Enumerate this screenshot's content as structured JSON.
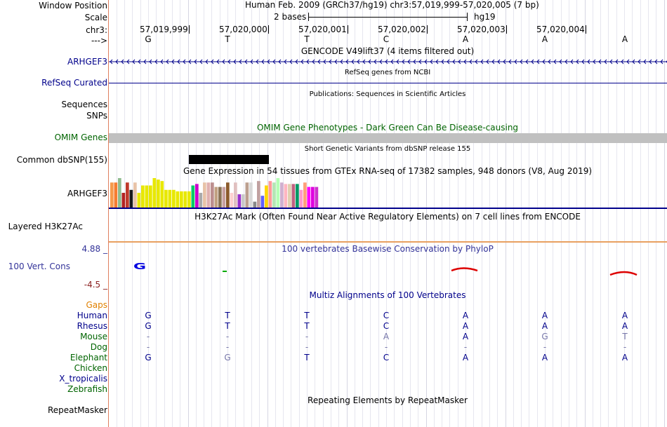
{
  "header": {
    "title": "Human Feb. 2009 (GRCh37/hg19)   chr3:57,019,999-57,020,005 (7 bp)",
    "scale_text": "2 bases",
    "assembly": "hg19",
    "positions": [
      "57,019,999",
      "57,020,000",
      "57,020,001",
      "57,020,002",
      "57,020,003",
      "57,020,004"
    ],
    "strand_bases": [
      "G",
      "T",
      "T",
      "C",
      "A",
      "A",
      "A"
    ]
  },
  "labels": {
    "window_position": "Window Position",
    "scale": "Scale",
    "chr": "chr3:",
    "strand": "--->",
    "arhgef3": "ARHGEF3",
    "refseq": "RefSeq Curated",
    "sequences": "Sequences",
    "snps": "SNPs",
    "omim": "OMIM Genes",
    "common_dbsnp": "Common dbSNP(155)",
    "arhgef3_gtex": "ARHGEF3",
    "h3k27ac": "Layered H3K27Ac",
    "cons_max": "4.88 _",
    "cons": "100 Vert. Cons",
    "cons_min": "-4.5 _",
    "gaps": "Gaps",
    "human": "Human",
    "rhesus": "Rhesus",
    "mouse": "Mouse",
    "dog": "Dog",
    "elephant": "Elephant",
    "chicken": "Chicken",
    "xtrop": "X_tropicalis",
    "zebrafish": "Zebrafish",
    "repeatmasker": "RepeatMasker"
  },
  "tracks": {
    "gencode": "GENCODE V49lift37 (4 items filtered out)",
    "refseq": "RefSeq genes from NCBI",
    "publications": "Publications: Sequences in Scientific Articles",
    "omim": "OMIM Gene Phenotypes - Dark Green Can Be Disease-causing",
    "dbsnp": "Short Genetic Variants from dbSNP release 155",
    "gtex": "Gene Expression in 54 tissues from GTEx RNA-seq of 17382 samples, 948 donors (V8, Aug 2019)",
    "h3k27ac": "H3K27Ac Mark (Often Found Near Active Regulatory Elements) on 7 cell lines from ENCODE",
    "phylop": "100 vertebrates Basewise Conservation by PhyloP",
    "multiz": "Multiz Alignments of 100 Vertebrates",
    "repeatmasker": "Repeating Elements by RepeatMasker"
  },
  "conservation": {
    "base_letter": "G"
  },
  "alignment": {
    "human": [
      "G",
      "T",
      "T",
      "C",
      "A",
      "A",
      "A"
    ],
    "rhesus": [
      "G",
      "T",
      "T",
      "C",
      "A",
      "A",
      "A"
    ],
    "mouse": [
      "-",
      "-",
      "-",
      "A",
      "A",
      "G",
      "T"
    ],
    "dog": [
      "-",
      "-",
      "-",
      "-",
      "-",
      "-",
      "-"
    ],
    "elephant": [
      "G",
      "G",
      "T",
      "C",
      "A",
      "A",
      "A"
    ]
  },
  "gtex_tissues": [
    {
      "value": 0.85,
      "color": "#f59a4c"
    },
    {
      "value": 0.85,
      "color": "#f57c30"
    },
    {
      "value": 1.0,
      "color": "#8fbc8f"
    },
    {
      "value": 0.5,
      "color": "#b22222"
    },
    {
      "value": 0.85,
      "color": "#c0392b"
    },
    {
      "value": 0.6,
      "color": "#1a1a1a"
    },
    {
      "value": 0.85,
      "color": "#e8c3a8"
    },
    {
      "value": 0.5,
      "color": "#e8e800"
    },
    {
      "value": 0.75,
      "color": "#e8e800"
    },
    {
      "value": 0.75,
      "color": "#e8e800"
    },
    {
      "value": 0.75,
      "color": "#e8e800"
    },
    {
      "value": 1.0,
      "color": "#e8e800"
    },
    {
      "value": 0.95,
      "color": "#e8e800"
    },
    {
      "value": 0.9,
      "color": "#e8e800"
    },
    {
      "value": 0.6,
      "color": "#e8e800"
    },
    {
      "value": 0.6,
      "color": "#e8e800"
    },
    {
      "value": 0.6,
      "color": "#e8e800"
    },
    {
      "value": 0.55,
      "color": "#e8e800"
    },
    {
      "value": 0.55,
      "color": "#e8e800"
    },
    {
      "value": 0.55,
      "color": "#e8e800"
    },
    {
      "value": 0.55,
      "color": "#e8e800"
    },
    {
      "value": 0.75,
      "color": "#00cc66"
    },
    {
      "value": 0.8,
      "color": "#cc00cc"
    },
    {
      "value": 0.5,
      "color": "#aaaaaa"
    },
    {
      "value": 0.85,
      "color": "#e8c3a8"
    },
    {
      "value": 0.85,
      "color": "#e0b0b0"
    },
    {
      "value": 0.85,
      "color": "#bc8f8f"
    },
    {
      "value": 0.7,
      "color": "#c0a080"
    },
    {
      "value": 0.7,
      "color": "#8b7355"
    },
    {
      "value": 0.7,
      "color": "#c8a0a0"
    },
    {
      "value": 0.85,
      "color": "#8b5a2b"
    },
    {
      "value": 0.5,
      "color": "#ffd0d0"
    },
    {
      "value": 0.85,
      "color": "#e0c0c0"
    },
    {
      "value": 0.45,
      "color": "#9932cc"
    },
    {
      "value": 0.45,
      "color": "#c9c9c9"
    },
    {
      "value": 0.85,
      "color": "#bc9f8f"
    },
    {
      "value": 0.85,
      "color": "#d8d8d8"
    },
    {
      "value": 0.2,
      "color": "#888888"
    },
    {
      "value": 0.9,
      "color": "#c0a0a0"
    },
    {
      "value": 0.4,
      "color": "#6060ff"
    },
    {
      "value": 0.75,
      "color": "#ffd700"
    },
    {
      "value": 0.9,
      "color": "#ff9999"
    },
    {
      "value": 0.85,
      "color": "#b5e6b5"
    },
    {
      "value": 1.0,
      "color": "#b5ffb5"
    },
    {
      "value": 0.85,
      "color": "#d0b0d0"
    },
    {
      "value": 0.8,
      "color": "#ffb6c1"
    },
    {
      "value": 0.8,
      "color": "#e0d0b0"
    },
    {
      "value": 0.8,
      "color": "#c06080"
    },
    {
      "value": 0.8,
      "color": "#009966"
    },
    {
      "value": 0.6,
      "color": "#ff99cc"
    },
    {
      "value": 0.85,
      "color": "#ffa07a"
    },
    {
      "value": 0.7,
      "color": "#ff00ff"
    },
    {
      "value": 0.7,
      "color": "#e000e0"
    },
    {
      "value": 0.7,
      "color": "#cc33cc"
    }
  ]
}
